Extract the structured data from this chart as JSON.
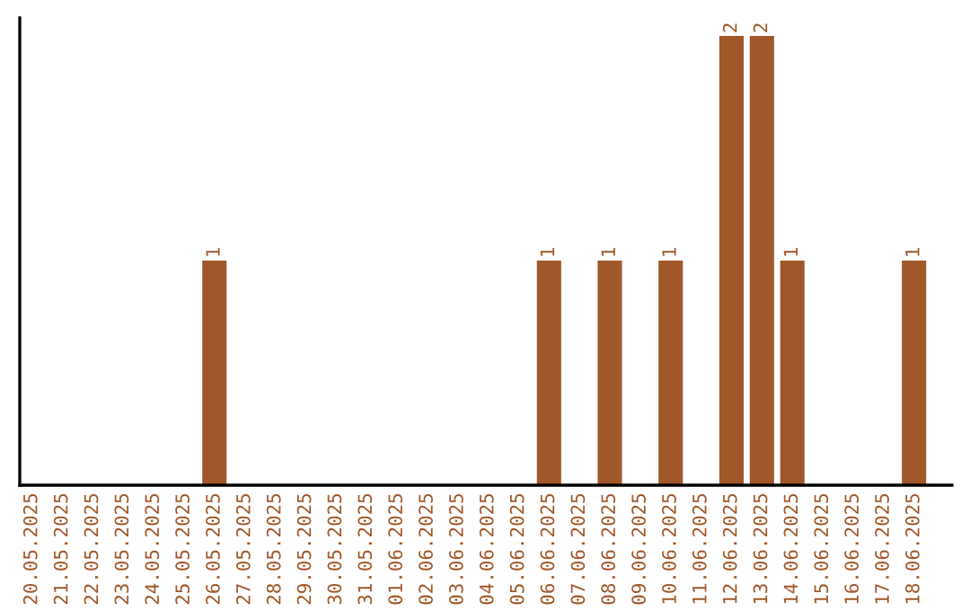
{
  "chart_data": {
    "type": "bar",
    "categories": [
      "20.05.2025",
      "21.05.2025",
      "22.05.2025",
      "23.05.2025",
      "24.05.2025",
      "25.05.2025",
      "26.05.2025",
      "27.05.2025",
      "28.05.2025",
      "29.05.2025",
      "30.05.2025",
      "31.05.2025",
      "01.06.2025",
      "02.06.2025",
      "03.06.2025",
      "04.06.2025",
      "05.06.2025",
      "06.06.2025",
      "07.06.2025",
      "08.06.2025",
      "09.06.2025",
      "10.06.2025",
      "11.06.2025",
      "12.06.2025",
      "13.06.2025",
      "14.06.2025",
      "15.06.2025",
      "16.06.2025",
      "17.06.2025",
      "18.06.2025"
    ],
    "values": [
      0,
      0,
      0,
      0,
      0,
      0,
      1,
      0,
      0,
      0,
      0,
      0,
      0,
      0,
      0,
      0,
      0,
      1,
      0,
      1,
      0,
      1,
      0,
      2,
      2,
      1,
      0,
      0,
      0,
      1
    ],
    "value_labels": [
      null,
      null,
      null,
      null,
      null,
      null,
      "1",
      null,
      null,
      null,
      null,
      null,
      null,
      null,
      null,
      null,
      null,
      "1",
      null,
      "1",
      null,
      "1",
      null,
      "2",
      "2",
      "1",
      null,
      null,
      null,
      "1"
    ],
    "color": "#a0582a",
    "grid": false,
    "legend": false
  }
}
